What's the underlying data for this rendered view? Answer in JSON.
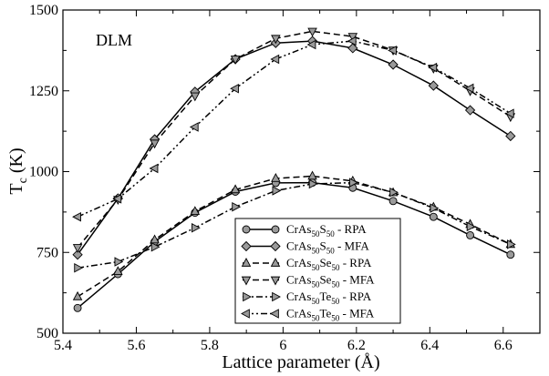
{
  "chart_data": {
    "type": "line",
    "xlabel": "Lattice parameter (Å)",
    "ylabel": "T",
    "ylabel_sub": "c",
    "ylabel_unit": " (K)",
    "annotation": "DLM",
    "xlim": [
      5.4,
      6.7
    ],
    "ylim": [
      500,
      1500
    ],
    "xticks": [
      5.4,
      5.6,
      5.8,
      6.0,
      6.2,
      6.4,
      6.6
    ],
    "xtick_labels": [
      "5.4",
      "5.6",
      "5.8",
      "6",
      "6.2",
      "6.4",
      "6.6"
    ],
    "yticks": [
      500,
      750,
      1000,
      1250,
      1500
    ],
    "ytick_labels": [
      "500",
      "750",
      "1000",
      "1250",
      "1500"
    ],
    "grid": false,
    "legend_position": "bottom-center",
    "x": [
      5.44,
      5.55,
      5.65,
      5.76,
      5.87,
      5.98,
      6.08,
      6.19,
      6.3,
      6.41,
      6.51,
      6.62
    ],
    "series": [
      {
        "label_main": "CrAs",
        "sub1": "50",
        "mid": "S",
        "sub2": "50",
        "suffix": " - RPA",
        "marker": "circle",
        "dash": "",
        "values": [
          578,
          683,
          783,
          873,
          938,
          965,
          966,
          950,
          909,
          860,
          803,
          743
        ]
      },
      {
        "label_main": "CrAs",
        "sub1": "50",
        "mid": "S",
        "sub2": "50",
        "suffix": " - MFA",
        "marker": "diamond",
        "dash": "",
        "values": [
          743,
          917,
          1100,
          1247,
          1348,
          1398,
          1404,
          1382,
          1331,
          1266,
          1190,
          1110
        ]
      },
      {
        "label_main": "CrAs",
        "sub1": "50",
        "mid": "Se",
        "sub2": "50",
        "suffix": " - RPA",
        "marker": "triangle-up",
        "dash": "7,4",
        "values": [
          613,
          691,
          789,
          877,
          944,
          979,
          986,
          971,
          935,
          890,
          837,
          775
        ]
      },
      {
        "label_main": "CrAs",
        "sub1": "50",
        "mid": "Se",
        "sub2": "50",
        "suffix": " - MFA",
        "marker": "triangle-down",
        "dash": "7,4",
        "values": [
          765,
          914,
          1088,
          1234,
          1348,
          1412,
          1434,
          1418,
          1376,
          1320,
          1250,
          1170
        ]
      },
      {
        "label_main": "CrAs",
        "sub1": "50",
        "mid": "Te",
        "sub2": "50",
        "suffix": " - RPA",
        "marker": "triangle-right",
        "dash": "7,3,2,3",
        "values": [
          702,
          721,
          767,
          826,
          891,
          941,
          962,
          966,
          936,
          887,
          830,
          775
        ]
      },
      {
        "label_main": "CrAs",
        "sub1": "50",
        "mid": "Te",
        "sub2": "50",
        "suffix": " - MFA",
        "marker": "triangle-left",
        "dash": "7,3,2,3,2,3",
        "values": [
          860,
          916,
          1010,
          1138,
          1257,
          1348,
          1393,
          1404,
          1375,
          1322,
          1258,
          1180
        ]
      }
    ]
  }
}
